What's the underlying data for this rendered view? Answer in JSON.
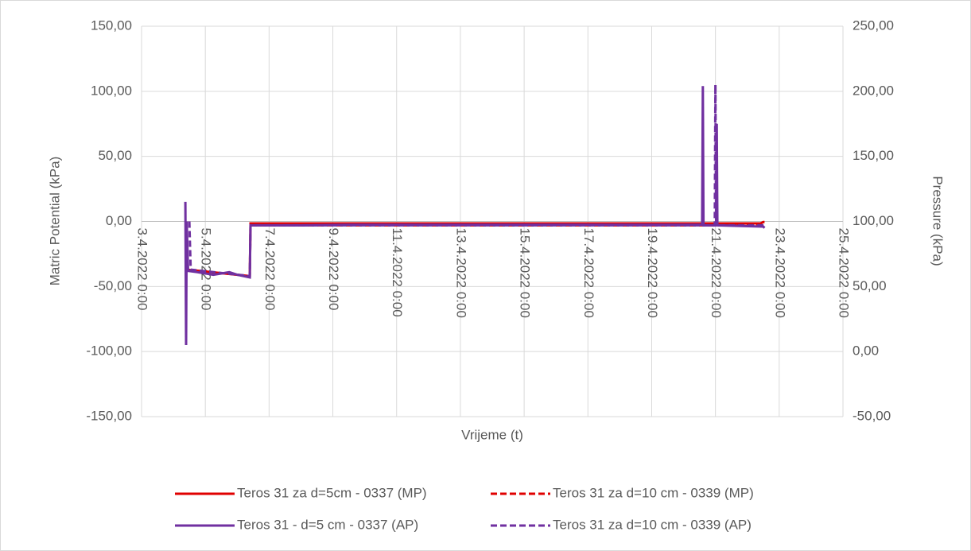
{
  "chart_data": {
    "type": "line",
    "y_axis_label": "Matric Potential (kPa)",
    "y2_axis_label": "Pressure (kPa)",
    "x_axis_label": "Vrijeme (t)",
    "xlim": [
      "3.4.2022 0:00",
      "25.4.2022 0:00"
    ],
    "xticks": [
      "3.4.2022 0:00",
      "5.4.2022 0:00",
      "7.4.2022 0:00",
      "9.4.2022 0:00",
      "11.4.2022 0:00",
      "13.4.2022 0:00",
      "15.4.2022 0:00",
      "17.4.2022 0:00",
      "19.4.2022 0:00",
      "21.4.2022 0:00",
      "23.4.2022 0:00",
      "25.4.2022 0:00"
    ],
    "ylim": [
      -150,
      150
    ],
    "yticks": [
      {
        "value": 150,
        "label": "150,00"
      },
      {
        "value": 100,
        "label": "100,00"
      },
      {
        "value": 50,
        "label": "50,00"
      },
      {
        "value": 0,
        "label": "0,00"
      },
      {
        "value": -50,
        "label": "-50,00"
      },
      {
        "value": -100,
        "label": "-100,00"
      },
      {
        "value": -150,
        "label": "-150,00"
      }
    ],
    "y2lim": [
      -50,
      250
    ],
    "y2ticks": [
      {
        "value": 250,
        "label": "250,00"
      },
      {
        "value": 200,
        "label": "200,00"
      },
      {
        "value": 150,
        "label": "150,00"
      },
      {
        "value": 100,
        "label": "100,00"
      },
      {
        "value": 50,
        "label": "50,00"
      },
      {
        "value": 0,
        "label": "0,00"
      },
      {
        "value": -50,
        "label": "-50,00"
      }
    ],
    "grid": true,
    "legend": "bottom",
    "series": [
      {
        "name": "Teros 31 za d=5cm - 0337 (MP)",
        "color": "#e00000",
        "style": "solid",
        "axis": "y",
        "x": [
          "4.4.2022 10:00",
          "6.4.2022 9:30",
          "6.4.2022 10:00",
          "22.4.2022 10:00",
          "22.4.2022 12:00",
          "22.4.2022 13:00"
        ],
        "values": [
          -37,
          -42,
          -1.5,
          -1.5,
          -0.5,
          -0.5
        ]
      },
      {
        "name": "Teros 31 za d=10 cm - 0339 (MP)",
        "color": "#e00000",
        "style": "dashed",
        "axis": "y",
        "x": [
          "6.4.2022 10:00",
          "22.4.2022 13:00"
        ],
        "values": [
          -3,
          -3
        ]
      },
      {
        "name": "Teros 31 - d=5 cm - 0337 (AP)",
        "color": "#7030a0",
        "style": "solid",
        "axis": "y2",
        "x": [
          "4.4.2022 9:00",
          "4.4.2022 9:30",
          "4.4.2022 10:00",
          "4.4.2022 11:00",
          "4.4.2022 18:00",
          "5.4.2022 6:00",
          "5.4.2022 12:00",
          "5.4.2022 18:00",
          "6.4.2022 0:00",
          "6.4.2022 9:30",
          "6.4.2022 10:00",
          "8.4.2022 0:00",
          "9.4.2022 12:00",
          "20.4.2022 14:00",
          "20.4.2022 14:30",
          "20.4.2022 15:00",
          "21.4.2022 0:30",
          "21.4.2022 1:00",
          "21.4.2022 1:30",
          "22.4.2022 12:00",
          "22.4.2022 13:00"
        ],
        "values": [
          115,
          5,
          100,
          62,
          61,
          59,
          60,
          61,
          59,
          57,
          97,
          97,
          97.5,
          97.5,
          204,
          97,
          97,
          175,
          97,
          96,
          95
        ]
      },
      {
        "name": "Teros 31 za d=10 cm - 0339 (AP)",
        "color": "#7030a0",
        "style": "dashed",
        "axis": "y2",
        "x": [
          "4.4.2022 12:00",
          "4.4.2022 13:00",
          "6.4.2022 9:30",
          "6.4.2022 10:00",
          "20.4.2022 23:30",
          "21.4.2022 0:00",
          "21.4.2022 0:30",
          "22.4.2022 13:00"
        ],
        "values": [
          100,
          63,
          58,
          97,
          97,
          205,
          97,
          97
        ]
      }
    ]
  }
}
